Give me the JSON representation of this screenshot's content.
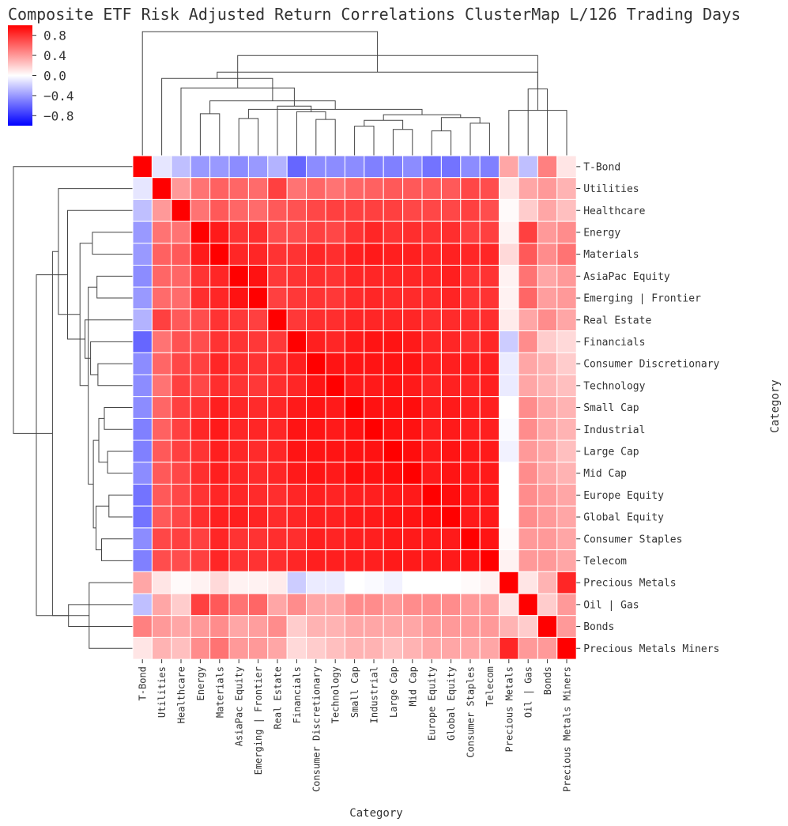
{
  "chart_data": {
    "type": "heatmap",
    "title": "Composite ETF Risk Adjusted Return Correlations ClusterMap L/126 Trading Days",
    "xlabel": "Category",
    "ylabel": "Category",
    "colormap": "bwr",
    "vmin": -1.0,
    "vmax": 1.0,
    "colorbar": {
      "ticks": [
        0.8,
        0.4,
        0.0,
        -0.4,
        -0.8
      ],
      "tick_labels": [
        "0.8",
        "0.4",
        "0.0",
        "−0.4",
        "−0.8"
      ]
    },
    "colors": {
      "high": "#ff0000",
      "mid": "#ffffff",
      "low": "#0000ff"
    },
    "categories": [
      "T-Bond",
      "Utilities",
      "Healthcare",
      "Energy",
      "Materials",
      "AsiaPac Equity",
      "Emerging | Frontier",
      "Real Estate",
      "Financials",
      "Consumer Discretionary",
      "Technology",
      "Small Cap",
      "Industrial",
      "Large Cap",
      "Mid Cap",
      "Europe Equity",
      "Global Equity",
      "Consumer Staples",
      "Telecom",
      "Precious Metals",
      "Oil | Gas",
      "Bonds",
      "Precious Metals Miners"
    ],
    "matrix": [
      [
        1.0,
        -0.1,
        -0.25,
        -0.4,
        -0.4,
        -0.45,
        -0.4,
        -0.3,
        -0.6,
        -0.45,
        -0.45,
        -0.45,
        -0.5,
        -0.5,
        -0.45,
        -0.55,
        -0.55,
        -0.45,
        -0.5,
        0.35,
        -0.25,
        0.5,
        0.1
      ],
      [
        -0.1,
        1.0,
        0.4,
        0.55,
        0.62,
        0.6,
        0.58,
        0.75,
        0.55,
        0.6,
        0.55,
        0.6,
        0.62,
        0.65,
        0.65,
        0.65,
        0.65,
        0.72,
        0.7,
        0.1,
        0.35,
        0.4,
        0.3
      ],
      [
        -0.25,
        0.4,
        1.0,
        0.55,
        0.65,
        0.6,
        0.58,
        0.65,
        0.68,
        0.72,
        0.75,
        0.75,
        0.75,
        0.75,
        0.72,
        0.72,
        0.72,
        0.75,
        0.7,
        0.02,
        0.2,
        0.35,
        0.25
      ],
      [
        -0.4,
        0.55,
        0.55,
        1.0,
        0.9,
        0.8,
        0.82,
        0.7,
        0.7,
        0.75,
        0.72,
        0.8,
        0.85,
        0.8,
        0.82,
        0.8,
        0.82,
        0.75,
        0.75,
        0.05,
        0.75,
        0.4,
        0.45
      ],
      [
        -0.4,
        0.62,
        0.65,
        0.9,
        1.0,
        0.85,
        0.85,
        0.8,
        0.8,
        0.85,
        0.82,
        0.88,
        0.9,
        0.88,
        0.88,
        0.85,
        0.87,
        0.85,
        0.85,
        0.15,
        0.65,
        0.45,
        0.55
      ],
      [
        -0.45,
        0.6,
        0.6,
        0.8,
        0.85,
        1.0,
        0.93,
        0.78,
        0.8,
        0.82,
        0.8,
        0.85,
        0.85,
        0.85,
        0.85,
        0.85,
        0.88,
        0.8,
        0.8,
        0.05,
        0.55,
        0.35,
        0.4
      ],
      [
        -0.4,
        0.58,
        0.58,
        0.82,
        0.85,
        0.93,
        1.0,
        0.75,
        0.78,
        0.8,
        0.78,
        0.83,
        0.85,
        0.83,
        0.83,
        0.83,
        0.86,
        0.8,
        0.8,
        0.05,
        0.6,
        0.38,
        0.4
      ],
      [
        -0.3,
        0.75,
        0.65,
        0.7,
        0.8,
        0.78,
        0.75,
        1.0,
        0.78,
        0.82,
        0.82,
        0.85,
        0.85,
        0.85,
        0.85,
        0.82,
        0.83,
        0.82,
        0.82,
        0.08,
        0.35,
        0.45,
        0.35
      ],
      [
        -0.6,
        0.55,
        0.68,
        0.7,
        0.8,
        0.8,
        0.78,
        0.78,
        1.0,
        0.88,
        0.85,
        0.9,
        0.92,
        0.92,
        0.9,
        0.85,
        0.85,
        0.82,
        0.85,
        -0.2,
        0.45,
        0.2,
        0.15
      ],
      [
        -0.45,
        0.6,
        0.72,
        0.75,
        0.85,
        0.82,
        0.8,
        0.82,
        0.88,
        1.0,
        0.92,
        0.92,
        0.92,
        0.92,
        0.92,
        0.88,
        0.88,
        0.88,
        0.88,
        -0.08,
        0.35,
        0.3,
        0.2
      ],
      [
        -0.45,
        0.55,
        0.75,
        0.72,
        0.82,
        0.8,
        0.78,
        0.82,
        0.85,
        0.92,
        1.0,
        0.9,
        0.9,
        0.92,
        0.9,
        0.86,
        0.87,
        0.86,
        0.88,
        -0.08,
        0.35,
        0.3,
        0.25
      ],
      [
        -0.45,
        0.6,
        0.75,
        0.8,
        0.88,
        0.85,
        0.83,
        0.85,
        0.9,
        0.92,
        0.9,
        1.0,
        0.93,
        0.93,
        0.95,
        0.88,
        0.9,
        0.88,
        0.88,
        0.0,
        0.45,
        0.35,
        0.3
      ],
      [
        -0.5,
        0.62,
        0.75,
        0.85,
        0.9,
        0.85,
        0.85,
        0.85,
        0.92,
        0.92,
        0.9,
        0.93,
        1.0,
        0.93,
        0.93,
        0.88,
        0.9,
        0.88,
        0.88,
        -0.02,
        0.45,
        0.35,
        0.3
      ],
      [
        -0.5,
        0.65,
        0.75,
        0.8,
        0.88,
        0.85,
        0.83,
        0.85,
        0.92,
        0.92,
        0.92,
        0.93,
        0.93,
        1.0,
        0.95,
        0.9,
        0.92,
        0.9,
        0.9,
        -0.05,
        0.4,
        0.35,
        0.25
      ],
      [
        -0.45,
        0.65,
        0.72,
        0.82,
        0.88,
        0.85,
        0.83,
        0.85,
        0.9,
        0.92,
        0.9,
        0.95,
        0.93,
        0.95,
        1.0,
        0.9,
        0.92,
        0.9,
        0.9,
        0.0,
        0.45,
        0.35,
        0.3
      ],
      [
        -0.55,
        0.65,
        0.72,
        0.8,
        0.85,
        0.85,
        0.83,
        0.82,
        0.85,
        0.88,
        0.86,
        0.88,
        0.88,
        0.9,
        0.9,
        1.0,
        0.95,
        0.9,
        0.9,
        0.0,
        0.45,
        0.4,
        0.35
      ],
      [
        -0.55,
        0.65,
        0.72,
        0.82,
        0.87,
        0.88,
        0.86,
        0.83,
        0.85,
        0.88,
        0.87,
        0.9,
        0.9,
        0.92,
        0.92,
        0.95,
        1.0,
        0.9,
        0.9,
        0.0,
        0.45,
        0.4,
        0.35
      ],
      [
        -0.45,
        0.72,
        0.75,
        0.75,
        0.85,
        0.8,
        0.8,
        0.82,
        0.82,
        0.88,
        0.86,
        0.88,
        0.88,
        0.9,
        0.9,
        0.9,
        0.9,
        1.0,
        0.92,
        0.02,
        0.4,
        0.4,
        0.35
      ],
      [
        -0.5,
        0.7,
        0.7,
        0.75,
        0.85,
        0.8,
        0.8,
        0.82,
        0.85,
        0.88,
        0.88,
        0.88,
        0.88,
        0.9,
        0.9,
        0.9,
        0.9,
        0.92,
        1.0,
        0.05,
        0.4,
        0.4,
        0.35
      ],
      [
        0.35,
        0.1,
        0.02,
        0.05,
        0.15,
        0.05,
        0.05,
        0.08,
        -0.2,
        -0.08,
        -0.08,
        0.0,
        -0.02,
        -0.05,
        0.0,
        0.0,
        0.0,
        0.02,
        0.05,
        1.0,
        0.1,
        0.3,
        0.85
      ],
      [
        -0.25,
        0.35,
        0.2,
        0.75,
        0.65,
        0.55,
        0.6,
        0.35,
        0.45,
        0.35,
        0.35,
        0.45,
        0.45,
        0.4,
        0.45,
        0.45,
        0.45,
        0.4,
        0.4,
        0.1,
        1.0,
        0.2,
        0.4
      ],
      [
        0.5,
        0.4,
        0.35,
        0.4,
        0.45,
        0.35,
        0.38,
        0.45,
        0.2,
        0.3,
        0.3,
        0.35,
        0.35,
        0.35,
        0.35,
        0.4,
        0.4,
        0.4,
        0.4,
        0.3,
        0.2,
        1.0,
        0.4
      ],
      [
        0.1,
        0.3,
        0.25,
        0.45,
        0.55,
        0.4,
        0.4,
        0.35,
        0.15,
        0.2,
        0.25,
        0.3,
        0.3,
        0.25,
        0.3,
        0.35,
        0.35,
        0.35,
        0.35,
        0.85,
        0.4,
        0.4,
        1.0
      ]
    ],
    "grid": false,
    "dendrograms": [
      "top",
      "left"
    ]
  }
}
